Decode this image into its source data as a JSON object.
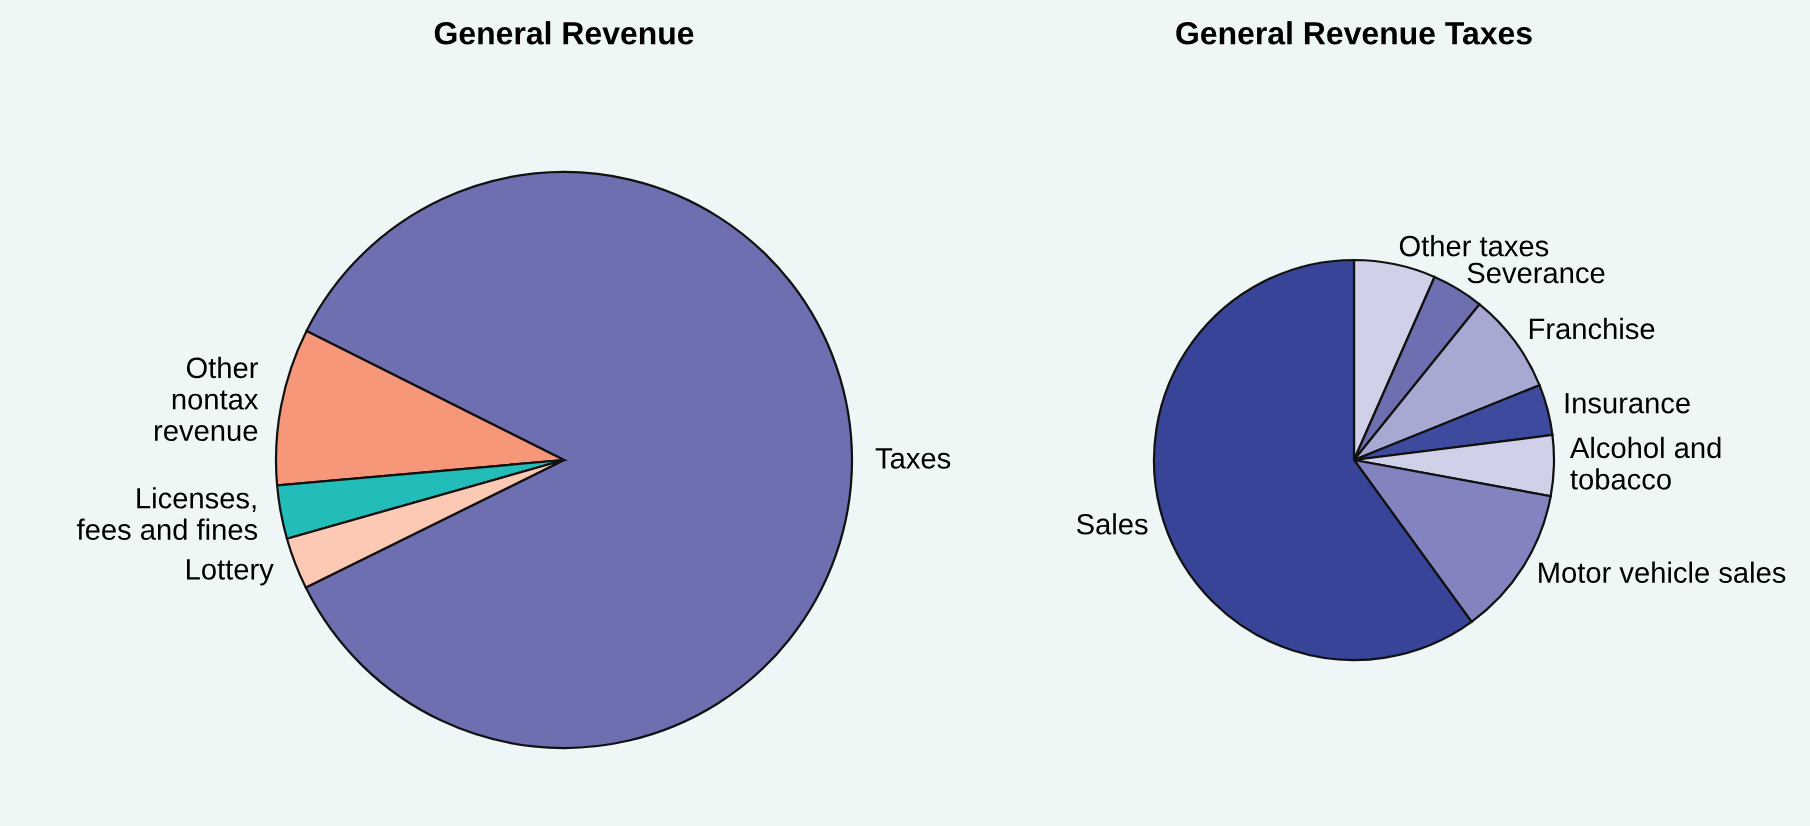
{
  "chart_data": [
    {
      "type": "pie",
      "title": "General Revenue",
      "categories": [
        "Taxes",
        "Other\nnontax\nrevenue",
        "Licenses,\nfees and fines",
        "Lottery"
      ],
      "values": [
        85.3,
        8.8,
        3.0,
        2.9
      ],
      "colors": [
        "#6e6fb0",
        "#f7977a",
        "#22bcb9",
        "#fcc9b5"
      ]
    },
    {
      "type": "pie",
      "title": "General Revenue Taxes",
      "categories": [
        "Other taxes",
        "Severance",
        "Franchise",
        "Insurance",
        "Alcohol and\ntobacco",
        "Motor vehicle sales",
        "Sales"
      ],
      "values": [
        6.6,
        4.2,
        8.1,
        4.1,
        4.9,
        12.1,
        60.0
      ],
      "colors": [
        "#d0d0e8",
        "#6e6fb0",
        "#a8a9d3",
        "#3e4a9e",
        "#d0d0e8",
        "#8283bf",
        "#374498"
      ]
    }
  ]
}
